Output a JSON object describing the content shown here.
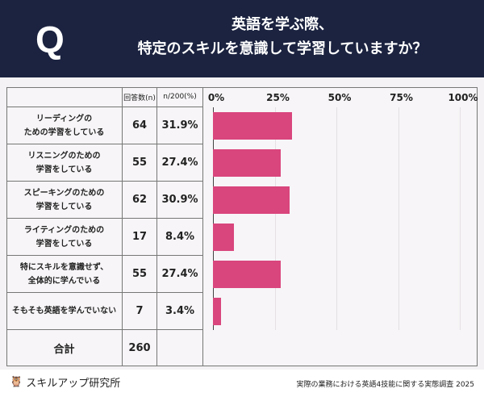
{
  "header": {
    "q": "Q",
    "title_line1": "英語を学ぶ際、",
    "title_line2": "特定のスキルを意識して学習していますか？"
  },
  "columns": {
    "n": "回答数(n)",
    "pct": "n/200(%)"
  },
  "total": {
    "label": "合計",
    "n": "260"
  },
  "footer": {
    "logo": "スキルアップ研究所",
    "source": "実際の業務における英語4技能に関する実態調査 2025"
  },
  "colors": {
    "header": "#1b2340",
    "bar": "#d9457d"
  },
  "chart_data": {
    "type": "bar",
    "orientation": "horizontal",
    "categories": [
      [
        "リーディングの",
        "ための学習をしている"
      ],
      [
        "リスニングのための",
        "学習をしている"
      ],
      [
        "スピーキングのための",
        "学習をしている"
      ],
      [
        "ライティングのための",
        "学習をしている"
      ],
      [
        "特にスキルを意識せず、",
        "全体的に学んでいる"
      ],
      [
        "そもそも英語を学んでいない",
        ""
      ]
    ],
    "n": [
      "64",
      "55",
      "62",
      "17",
      "55",
      "7"
    ],
    "pct_labels": [
      "31.9%",
      "27.4%",
      "30.9%",
      "8.4%",
      "27.4%",
      "3.4%"
    ],
    "values": [
      31.9,
      27.4,
      30.9,
      8.4,
      27.4,
      3.4
    ],
    "xlim": [
      0,
      100
    ],
    "ticks": [
      "0%",
      "25%",
      "50%",
      "75%",
      "100%"
    ],
    "tick_values": [
      0,
      25,
      50,
      75,
      100
    ]
  }
}
